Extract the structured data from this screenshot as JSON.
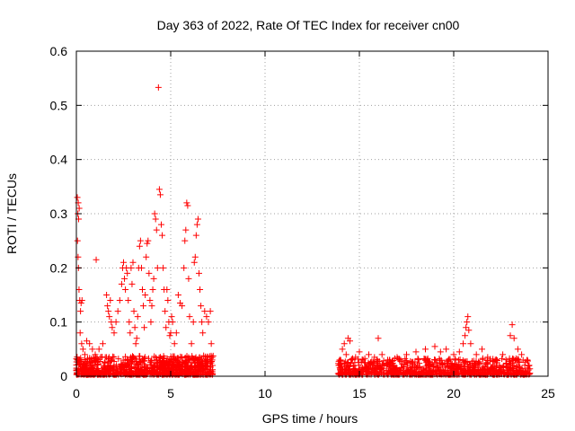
{
  "chart_data": {
    "type": "scatter",
    "title": "Day 363 of 2022, Rate Of TEC Index for receiver cn00",
    "xlabel": "GPS time / hours",
    "ylabel": "ROTI / TECUs",
    "xlim": [
      0,
      25
    ],
    "ylim": [
      0,
      0.6
    ],
    "x_ticks": [
      0,
      5,
      10,
      15,
      20,
      25
    ],
    "y_ticks": [
      0,
      0.1,
      0.2,
      0.3,
      0.4,
      0.5,
      0.6
    ],
    "x_tick_labels": [
      "0",
      "5",
      "10",
      "15",
      "20",
      "25"
    ],
    "y_tick_labels": [
      "0",
      "0.1",
      "0.2",
      "0.3",
      "0.4",
      "0.5",
      "0.6"
    ],
    "grid": true,
    "marker": "+",
    "color": "#ff0000",
    "series": [
      {
        "points": [
          [
            0.02,
            0.015
          ],
          [
            0.05,
            0.33
          ],
          [
            0.08,
            0.3
          ],
          [
            0.1,
            0.32
          ],
          [
            0.12,
            0.29
          ],
          [
            0.15,
            0.31
          ],
          [
            0.06,
            0.25
          ],
          [
            0.09,
            0.22
          ],
          [
            0.11,
            0.2
          ],
          [
            0.14,
            0.16
          ],
          [
            0.18,
            0.14
          ],
          [
            0.22,
            0.12
          ],
          [
            0.25,
            0.135
          ],
          [
            0.3,
            0.14
          ],
          [
            0.2,
            0.08
          ],
          [
            0.28,
            0.06
          ],
          [
            0.35,
            0.05
          ],
          [
            0.45,
            0.04
          ],
          [
            0.55,
            0.065
          ],
          [
            0.7,
            0.06
          ],
          [
            0.85,
            0.05
          ],
          [
            1.0,
            0.04
          ],
          [
            1.05,
            0.215
          ],
          [
            1.2,
            0.05
          ],
          [
            1.4,
            0.06
          ],
          [
            1.6,
            0.15
          ],
          [
            1.65,
            0.13
          ],
          [
            1.7,
            0.12
          ],
          [
            1.75,
            0.11
          ],
          [
            1.8,
            0.14
          ],
          [
            1.85,
            0.1
          ],
          [
            1.9,
            0.09
          ],
          [
            2.0,
            0.08
          ],
          [
            2.1,
            0.1
          ],
          [
            2.2,
            0.12
          ],
          [
            2.3,
            0.14
          ],
          [
            2.4,
            0.17
          ],
          [
            2.45,
            0.2
          ],
          [
            2.5,
            0.21
          ],
          [
            2.55,
            0.18
          ],
          [
            2.6,
            0.16
          ],
          [
            2.65,
            0.2
          ],
          [
            2.7,
            0.19
          ],
          [
            2.75,
            0.14
          ],
          [
            2.8,
            0.1
          ],
          [
            2.85,
            0.08
          ],
          [
            2.9,
            0.2
          ],
          [
            2.95,
            0.17
          ],
          [
            3.0,
            0.21
          ],
          [
            3.05,
            0.12
          ],
          [
            3.1,
            0.09
          ],
          [
            3.15,
            0.06
          ],
          [
            3.2,
            0.07
          ],
          [
            3.25,
            0.11
          ],
          [
            3.3,
            0.2
          ],
          [
            3.35,
            0.24
          ],
          [
            3.4,
            0.25
          ],
          [
            3.45,
            0.2
          ],
          [
            3.5,
            0.16
          ],
          [
            3.55,
            0.13
          ],
          [
            3.6,
            0.09
          ],
          [
            3.65,
            0.15
          ],
          [
            3.7,
            0.22
          ],
          [
            3.75,
            0.245
          ],
          [
            3.8,
            0.25
          ],
          [
            3.85,
            0.19
          ],
          [
            3.9,
            0.14
          ],
          [
            3.95,
            0.1
          ],
          [
            4.0,
            0.13
          ],
          [
            4.05,
            0.16
          ],
          [
            4.1,
            0.18
          ],
          [
            4.15,
            0.3
          ],
          [
            4.2,
            0.29
          ],
          [
            4.25,
            0.27
          ],
          [
            4.3,
            0.2
          ],
          [
            4.35,
            0.533
          ],
          [
            4.4,
            0.345
          ],
          [
            4.45,
            0.335
          ],
          [
            4.5,
            0.28
          ],
          [
            4.55,
            0.26
          ],
          [
            4.6,
            0.2
          ],
          [
            4.65,
            0.16
          ],
          [
            4.7,
            0.12
          ],
          [
            4.75,
            0.09
          ],
          [
            4.8,
            0.16
          ],
          [
            4.85,
            0.14
          ],
          [
            4.9,
            0.1
          ],
          [
            4.95,
            0.075
          ],
          [
            5.0,
            0.08
          ],
          [
            5.05,
            0.11
          ],
          [
            5.1,
            0.1
          ],
          [
            5.2,
            0.06
          ],
          [
            5.3,
            0.08
          ],
          [
            5.4,
            0.15
          ],
          [
            5.5,
            0.135
          ],
          [
            5.6,
            0.13
          ],
          [
            5.7,
            0.2
          ],
          [
            5.75,
            0.25
          ],
          [
            5.8,
            0.27
          ],
          [
            5.85,
            0.32
          ],
          [
            5.9,
            0.315
          ],
          [
            5.95,
            0.18
          ],
          [
            6.0,
            0.11
          ],
          [
            6.1,
            0.06
          ],
          [
            6.2,
            0.1
          ],
          [
            6.25,
            0.21
          ],
          [
            6.3,
            0.22
          ],
          [
            6.35,
            0.26
          ],
          [
            6.4,
            0.28
          ],
          [
            6.45,
            0.29
          ],
          [
            6.5,
            0.19
          ],
          [
            6.55,
            0.16
          ],
          [
            6.6,
            0.13
          ],
          [
            6.65,
            0.1
          ],
          [
            6.7,
            0.08
          ],
          [
            6.8,
            0.12
          ],
          [
            6.9,
            0.11
          ],
          [
            7.0,
            0.1
          ],
          [
            7.1,
            0.12
          ],
          [
            7.15,
            0.06
          ],
          [
            7.2,
            0.03
          ],
          [
            13.9,
            0.02
          ],
          [
            14.0,
            0.03
          ],
          [
            14.1,
            0.05
          ],
          [
            14.2,
            0.06
          ],
          [
            14.3,
            0.04
          ],
          [
            14.4,
            0.07
          ],
          [
            14.5,
            0.065
          ],
          [
            14.6,
            0.03
          ],
          [
            14.8,
            0.035
          ],
          [
            15.0,
            0.045
          ],
          [
            15.2,
            0.03
          ],
          [
            15.5,
            0.04
          ],
          [
            15.8,
            0.035
          ],
          [
            16.0,
            0.07
          ],
          [
            16.2,
            0.04
          ],
          [
            16.5,
            0.03
          ],
          [
            17.0,
            0.035
          ],
          [
            17.5,
            0.04
          ],
          [
            18.0,
            0.045
          ],
          [
            18.5,
            0.05
          ],
          [
            19.0,
            0.055
          ],
          [
            19.3,
            0.045
          ],
          [
            19.6,
            0.05
          ],
          [
            20.0,
            0.04
          ],
          [
            20.3,
            0.045
          ],
          [
            20.5,
            0.06
          ],
          [
            20.6,
            0.075
          ],
          [
            20.65,
            0.09
          ],
          [
            20.7,
            0.1
          ],
          [
            20.75,
            0.11
          ],
          [
            20.8,
            0.085
          ],
          [
            20.9,
            0.06
          ],
          [
            21.2,
            0.04
          ],
          [
            21.5,
            0.05
          ],
          [
            21.8,
            0.035
          ],
          [
            22.2,
            0.03
          ],
          [
            22.6,
            0.04
          ],
          [
            23.0,
            0.075
          ],
          [
            23.1,
            0.095
          ],
          [
            23.2,
            0.07
          ],
          [
            23.4,
            0.05
          ],
          [
            23.6,
            0.04
          ],
          [
            23.9,
            0.03
          ],
          [
            24.0,
            0.02
          ]
        ]
      }
    ]
  }
}
